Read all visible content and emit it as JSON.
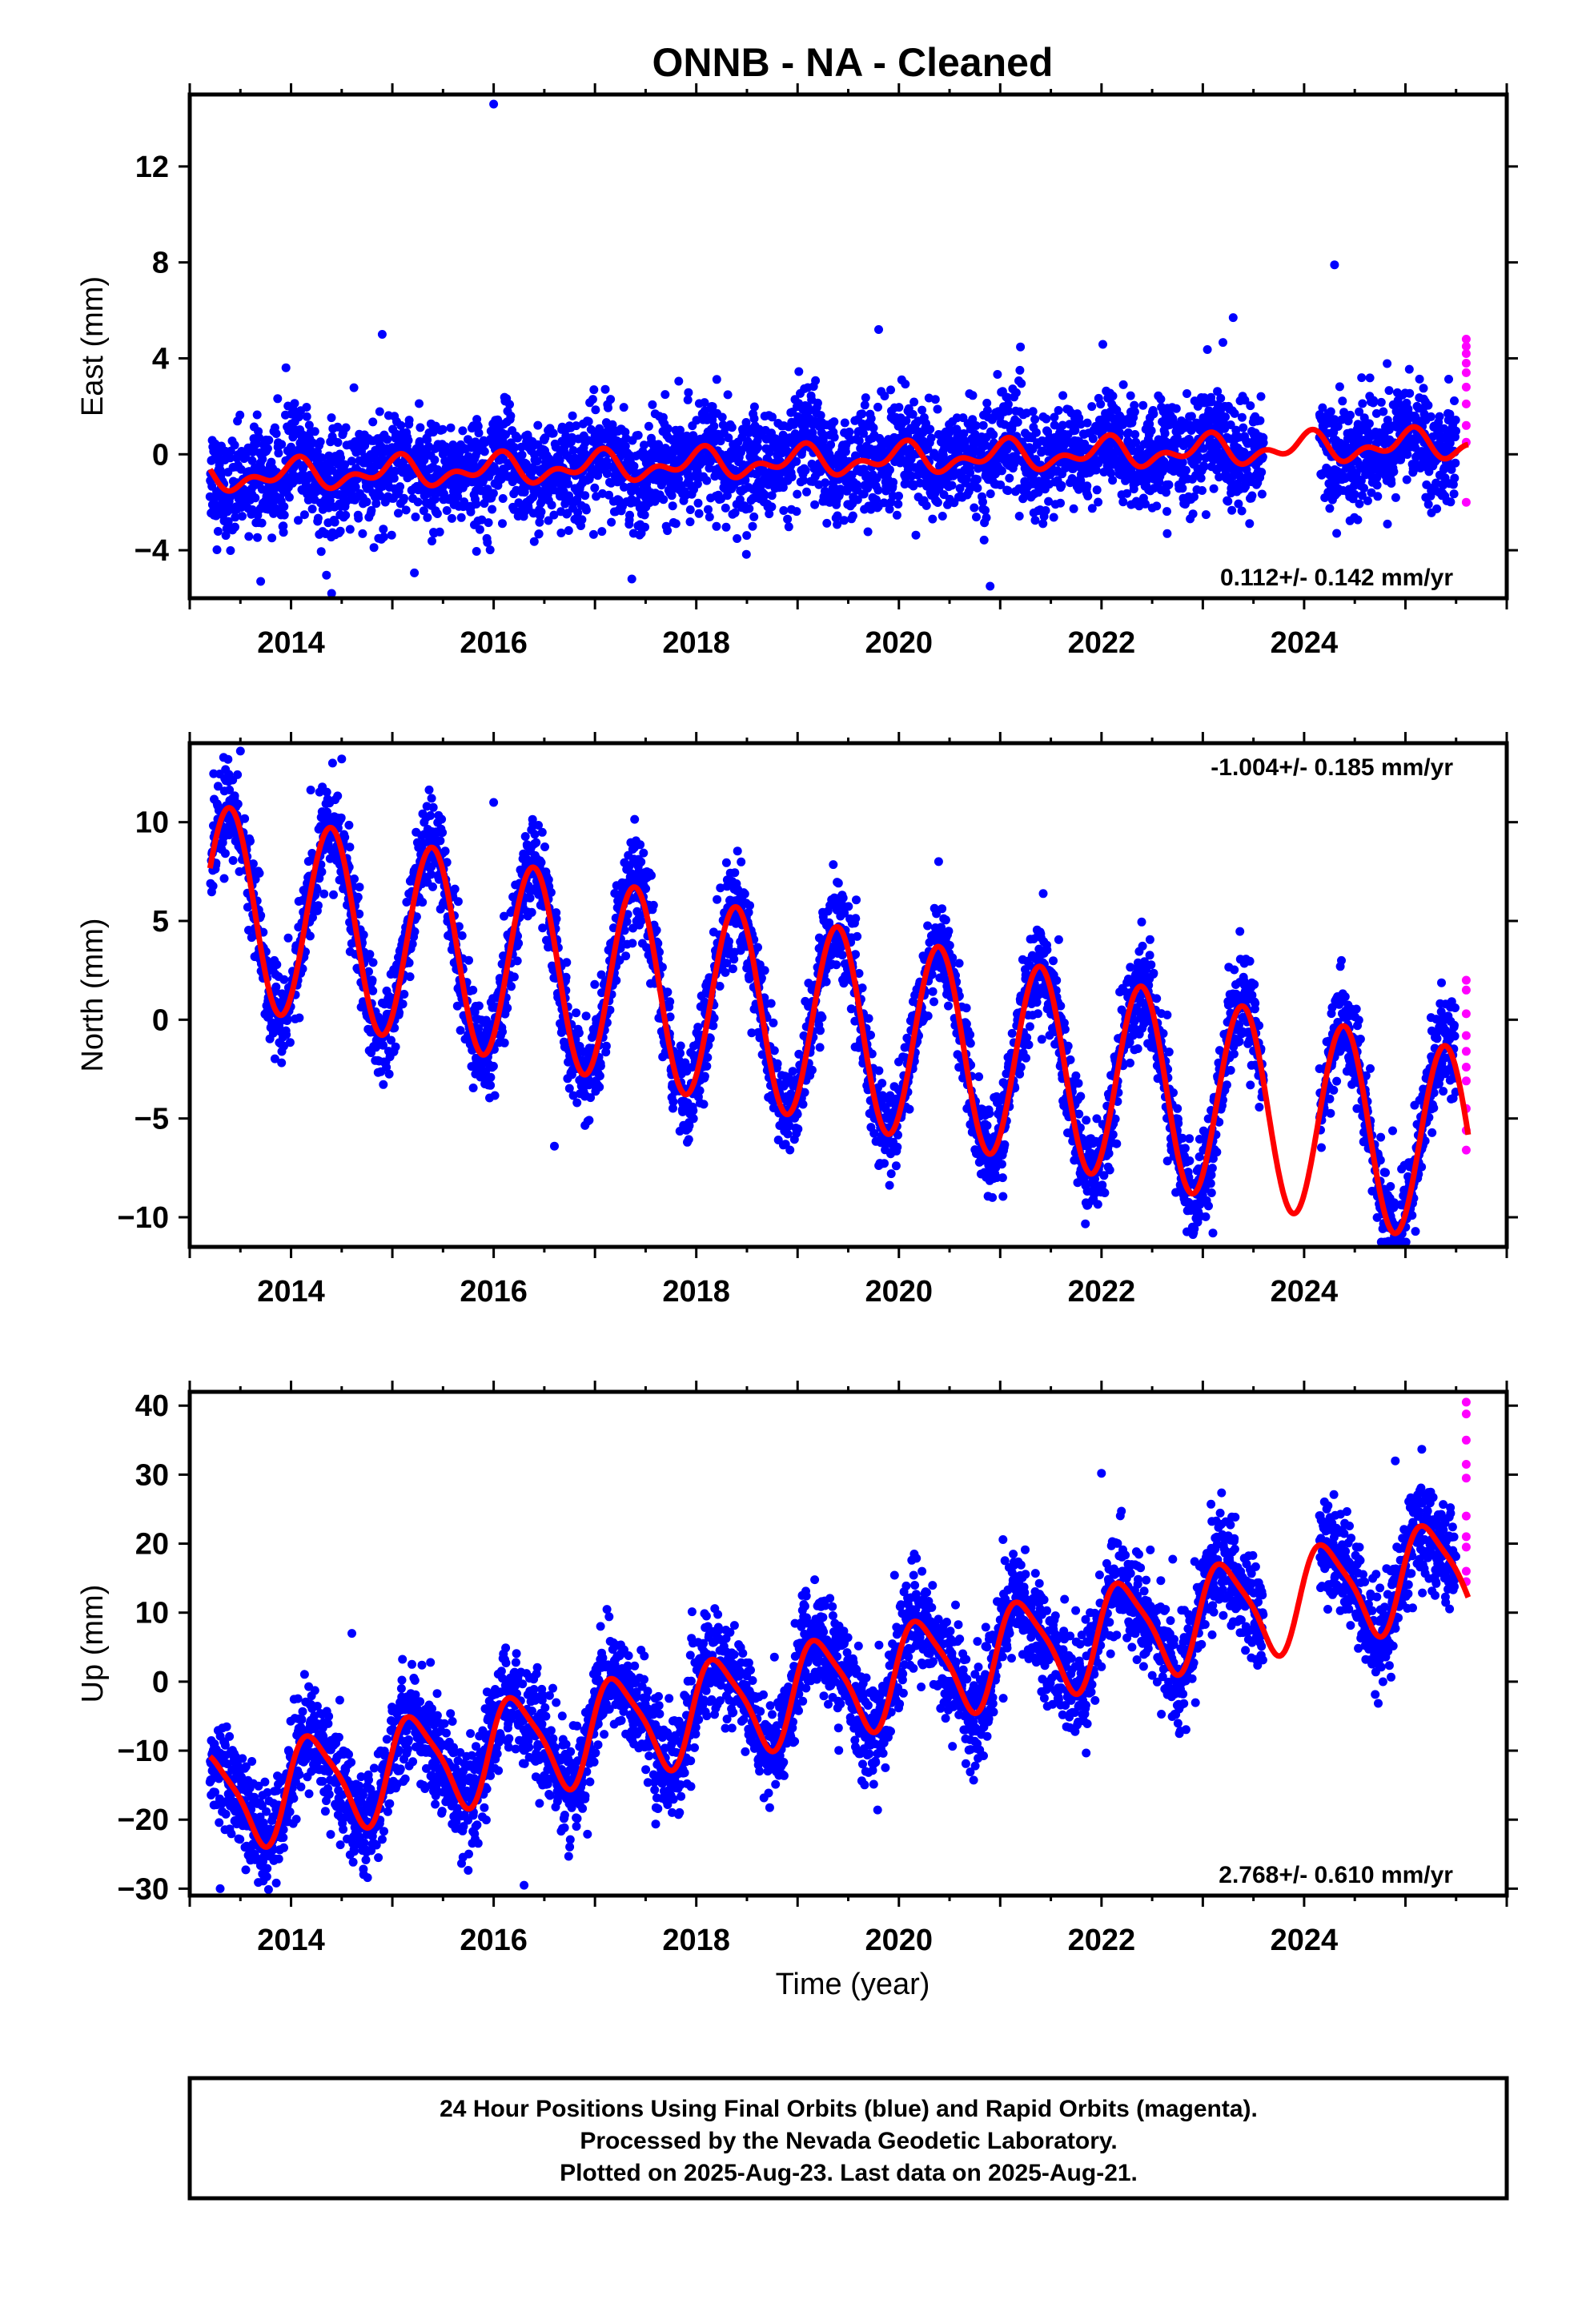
{
  "title": "ONNB  - NA - Cleaned",
  "xlabel": "Time (year)",
  "colors": {
    "final_orbits": "#0000ff",
    "rapid_orbits": "#ff00ff",
    "model_fit": "#ff0000",
    "frame": "#000000"
  },
  "chart_data": [
    {
      "type": "scatter",
      "panel": "east",
      "ylabel": "East (mm)",
      "xlim": [
        2013.0,
        2026.0
      ],
      "ylim": [
        -6.0,
        15.0
      ],
      "xticks": [
        2014,
        2016,
        2018,
        2020,
        2022,
        2024
      ],
      "yticks": [
        -4,
        0,
        4,
        8,
        12
      ],
      "rate_text": "0.112+/- 0.142 mm/yr",
      "rate_position": "bottom-right",
      "series": [
        {
          "orbit": "final",
          "x_range": [
            2013.2,
            2025.5
          ],
          "data_gap": [
            2023.6,
            2024.15
          ],
          "scatter_std": 1.1
        },
        {
          "orbit": "rapid",
          "x": [
            2025.6,
            2025.6,
            2025.6,
            2025.6,
            2025.6,
            2025.6,
            2025.6,
            2025.6,
            2025.6,
            2025.6
          ],
          "y": [
            4.8,
            4.5,
            4.2,
            3.8,
            3.4,
            2.8,
            2.1,
            1.2,
            0.5,
            -2.0
          ]
        }
      ],
      "outliers": {
        "x": [
          2016.0,
          2024.3,
          2013.7,
          2014.4,
          2020.9,
          2023.3,
          2014.9,
          2019.8
        ],
        "y": [
          14.6,
          7.9,
          -5.3,
          -5.8,
          -5.5,
          5.7,
          5.0,
          5.2
        ]
      },
      "model": {
        "intercept": -0.3,
        "rate_mm_yr": 0.112,
        "ref_epoch": 2019.0,
        "annual_amp": 0.45,
        "annual_phase": 1.4,
        "semi_amp": 0.35,
        "semi_phase": 0.3
      }
    },
    {
      "type": "scatter",
      "panel": "north",
      "ylabel": "North (mm)",
      "xlim": [
        2013.0,
        2026.0
      ],
      "ylim": [
        -11.5,
        14.0
      ],
      "xticks": [
        2014,
        2016,
        2018,
        2020,
        2022,
        2024
      ],
      "yticks": [
        -10,
        -5,
        0,
        5,
        10
      ],
      "rate_text": "-1.004+/- 0.185 mm/yr",
      "rate_position": "top-right",
      "series": [
        {
          "orbit": "final",
          "x_range": [
            2013.2,
            2025.5
          ],
          "data_gap": [
            2023.6,
            2024.15
          ],
          "scatter_std": 1.2
        },
        {
          "orbit": "rapid",
          "x": [
            2025.6,
            2025.6,
            2025.6,
            2025.6,
            2025.6,
            2025.6,
            2025.6,
            2025.6,
            2025.6,
            2025.6
          ],
          "y": [
            2.0,
            1.5,
            0.3,
            -0.8,
            -1.6,
            -2.4,
            -3.1,
            -4.5,
            -5.6,
            -6.6
          ]
        }
      ],
      "outliers": {
        "x": [
          2016.0,
          2016.6,
          2023.1,
          2013.5,
          2014.5
        ],
        "y": [
          11.0,
          -6.4,
          -10.8,
          13.6,
          13.2
        ]
      },
      "model": {
        "intercept": 0.1,
        "rate_mm_yr": -1.004,
        "ref_epoch": 2019.0,
        "annual_amp": 5.0,
        "annual_phase": -0.9,
        "semi_amp": 0.0,
        "semi_phase": 0.0
      }
    },
    {
      "type": "scatter",
      "panel": "up",
      "ylabel": "Up (mm)",
      "xlim": [
        2013.0,
        2026.0
      ],
      "ylim": [
        -31.0,
        42.0
      ],
      "xticks": [
        2014,
        2016,
        2018,
        2020,
        2022,
        2024
      ],
      "yticks": [
        -30,
        -20,
        -10,
        0,
        10,
        20,
        30,
        40
      ],
      "rate_text": "2.768+/- 0.610 mm/yr",
      "rate_position": "bottom-right",
      "series": [
        {
          "orbit": "final",
          "x_range": [
            2013.2,
            2025.5
          ],
          "data_gap": [
            2023.6,
            2024.15
          ],
          "scatter_std": 3.8
        },
        {
          "orbit": "rapid",
          "x": [
            2025.6,
            2025.6,
            2025.6,
            2025.6,
            2025.6,
            2025.6,
            2025.6,
            2025.6,
            2025.6,
            2025.6
          ],
          "y": [
            40.5,
            38.8,
            35.0,
            31.5,
            29.5,
            24.0,
            21.0,
            19.5,
            16.0,
            14.5
          ]
        }
      ],
      "outliers": {
        "x": [
          2013.3,
          2016.3,
          2022.0,
          2024.9,
          2014.6
        ],
        "y": [
          -30.0,
          -29.5,
          30.2,
          32.0,
          7.0
        ]
      },
      "model": {
        "intercept": -1.5,
        "rate_mm_yr": 2.768,
        "ref_epoch": 2019.0,
        "annual_amp": 7.0,
        "annual_phase": 0.2,
        "semi_amp": 1.5,
        "semi_phase": 0.8
      }
    }
  ],
  "footer": {
    "line1": "24 Hour Positions Using Final Orbits (blue) and Rapid Orbits (magenta).",
    "line2": "Processed by the Nevada Geodetic Laboratory.",
    "line3": "Plotted on 2025-Aug-23. Last data on 2025-Aug-21."
  }
}
